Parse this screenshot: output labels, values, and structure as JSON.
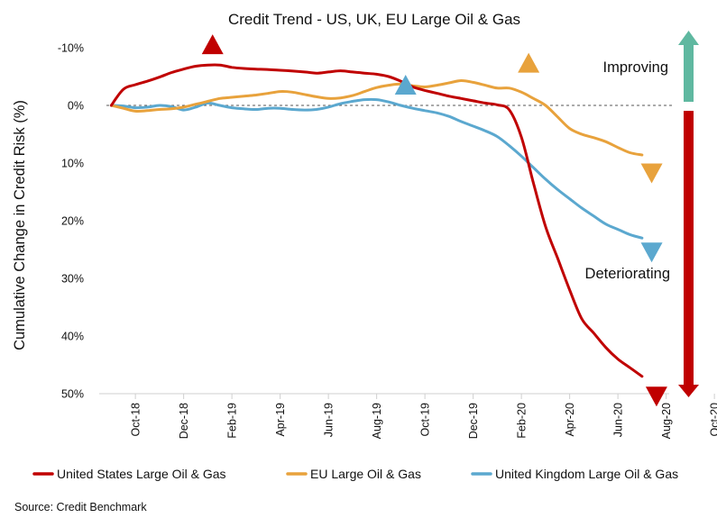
{
  "chart_data": {
    "type": "line",
    "title": "Credit Trend - US, UK, EU Large Oil & Gas",
    "ylabel": "Cumulative Change in Credit Risk (%)",
    "xlabel": "",
    "y_inverted": true,
    "ylim": [
      -10,
      50
    ],
    "y_ticks": [
      {
        "value": -10,
        "label": "-10%",
        "color": "#3a9a82"
      },
      {
        "value": 0,
        "label": "0%",
        "color": "#111111"
      },
      {
        "value": 10,
        "label": "10%",
        "color": "#cc1111"
      },
      {
        "value": 20,
        "label": "20%",
        "color": "#cc1111"
      },
      {
        "value": 30,
        "label": "30%",
        "color": "#cc1111"
      },
      {
        "value": 40,
        "label": "40%",
        "color": "#cc1111"
      },
      {
        "value": 50,
        "label": "50%",
        "color": "#cc1111"
      }
    ],
    "xlim": [
      -0.5,
      23.5
    ],
    "x_ticks": [
      {
        "value": 1,
        "label": "Oct-18"
      },
      {
        "value": 3,
        "label": "Dec-18"
      },
      {
        "value": 5,
        "label": "Feb-19"
      },
      {
        "value": 7,
        "label": "Apr-19"
      },
      {
        "value": 9,
        "label": "Jun-19"
      },
      {
        "value": 11,
        "label": "Aug-19"
      },
      {
        "value": 13,
        "label": "Oct-19"
      },
      {
        "value": 15,
        "label": "Dec-19"
      },
      {
        "value": 17,
        "label": "Feb-20"
      },
      {
        "value": 19,
        "label": "Apr-20"
      },
      {
        "value": 21,
        "label": "Jun-20"
      },
      {
        "value": 23,
        "label": "Aug-20"
      },
      {
        "value": 25,
        "label": "Oct-20"
      }
    ],
    "series": [
      {
        "name": "United States Large Oil & Gas",
        "color": "#c00000",
        "points": [
          [
            0,
            0
          ],
          [
            0.5,
            -2.8
          ],
          [
            1,
            -3.6
          ],
          [
            1.5,
            -4.2
          ],
          [
            2,
            -4.9
          ],
          [
            2.5,
            -5.7
          ],
          [
            3,
            -6.3
          ],
          [
            3.5,
            -6.8
          ],
          [
            4,
            -7.0
          ],
          [
            4.5,
            -7.0
          ],
          [
            5,
            -6.6
          ],
          [
            5.5,
            -6.4
          ],
          [
            6,
            -6.3
          ],
          [
            7,
            -6.1
          ],
          [
            8,
            -5.8
          ],
          [
            8.5,
            -5.6
          ],
          [
            9,
            -5.8
          ],
          [
            9.5,
            -6.0
          ],
          [
            10,
            -5.8
          ],
          [
            10.5,
            -5.6
          ],
          [
            11,
            -5.4
          ],
          [
            11.5,
            -5.0
          ],
          [
            12,
            -4.2
          ],
          [
            12.5,
            -3.2
          ],
          [
            13,
            -2.6
          ],
          [
            13.5,
            -2.1
          ],
          [
            14,
            -1.6
          ],
          [
            14.5,
            -1.2
          ],
          [
            15,
            -0.8
          ],
          [
            15.5,
            -0.4
          ],
          [
            16,
            -0.1
          ],
          [
            16.5,
            0.8
          ],
          [
            17,
            5.5
          ],
          [
            17.5,
            13.5
          ],
          [
            18,
            21.0
          ],
          [
            18.5,
            26.5
          ],
          [
            19,
            32.0
          ],
          [
            19.5,
            37.0
          ],
          [
            20,
            39.5
          ],
          [
            20.5,
            42.0
          ],
          [
            21,
            44.0
          ],
          [
            21.5,
            45.5
          ],
          [
            22,
            47.0
          ]
        ]
      },
      {
        "name": "EU Large Oil & Gas",
        "color": "#e8a23c",
        "points": [
          [
            0,
            0
          ],
          [
            0.5,
            0.5
          ],
          [
            1,
            1.0
          ],
          [
            1.5,
            0.9
          ],
          [
            2,
            0.7
          ],
          [
            2.5,
            0.6
          ],
          [
            3,
            0.3
          ],
          [
            3.5,
            -0.2
          ],
          [
            4,
            -0.7
          ],
          [
            4.5,
            -1.2
          ],
          [
            5,
            -1.4
          ],
          [
            5.5,
            -1.6
          ],
          [
            6,
            -1.8
          ],
          [
            6.5,
            -2.1
          ],
          [
            7,
            -2.4
          ],
          [
            7.5,
            -2.3
          ],
          [
            8,
            -1.9
          ],
          [
            8.5,
            -1.5
          ],
          [
            9,
            -1.2
          ],
          [
            9.5,
            -1.3
          ],
          [
            10,
            -1.7
          ],
          [
            10.5,
            -2.4
          ],
          [
            11,
            -3.1
          ],
          [
            11.5,
            -3.5
          ],
          [
            12,
            -3.7
          ],
          [
            12.5,
            -3.4
          ],
          [
            13,
            -3.2
          ],
          [
            13.5,
            -3.5
          ],
          [
            14,
            -3.9
          ],
          [
            14.5,
            -4.3
          ],
          [
            15,
            -4.0
          ],
          [
            15.5,
            -3.5
          ],
          [
            16,
            -3.0
          ],
          [
            16.5,
            -3.0
          ],
          [
            17,
            -2.3
          ],
          [
            17.5,
            -1.2
          ],
          [
            18,
            0.0
          ],
          [
            18.5,
            2.0
          ],
          [
            19,
            4.0
          ],
          [
            19.5,
            5.0
          ],
          [
            20,
            5.6
          ],
          [
            20.5,
            6.3
          ],
          [
            21,
            7.3
          ],
          [
            21.5,
            8.2
          ],
          [
            22,
            8.6
          ]
        ]
      },
      {
        "name": "United Kingdom Large Oil & Gas",
        "color": "#5ba8cf",
        "points": [
          [
            0,
            0
          ],
          [
            0.5,
            0.1
          ],
          [
            1,
            0.4
          ],
          [
            1.5,
            0.3
          ],
          [
            2,
            0.0
          ],
          [
            2.5,
            0.2
          ],
          [
            3,
            0.8
          ],
          [
            3.5,
            0.3
          ],
          [
            4,
            -0.4
          ],
          [
            4.5,
            0.0
          ],
          [
            5,
            0.4
          ],
          [
            5.5,
            0.6
          ],
          [
            6,
            0.7
          ],
          [
            6.5,
            0.5
          ],
          [
            7,
            0.5
          ],
          [
            7.5,
            0.7
          ],
          [
            8,
            0.8
          ],
          [
            8.5,
            0.7
          ],
          [
            9,
            0.3
          ],
          [
            9.5,
            -0.3
          ],
          [
            10,
            -0.7
          ],
          [
            10.5,
            -1.0
          ],
          [
            11,
            -1.0
          ],
          [
            11.5,
            -0.6
          ],
          [
            12,
            0.0
          ],
          [
            12.5,
            0.5
          ],
          [
            13,
            0.9
          ],
          [
            13.5,
            1.3
          ],
          [
            14,
            1.9
          ],
          [
            14.5,
            2.8
          ],
          [
            15,
            3.6
          ],
          [
            15.5,
            4.4
          ],
          [
            16,
            5.4
          ],
          [
            16.5,
            7.0
          ],
          [
            17,
            8.8
          ],
          [
            17.5,
            10.8
          ],
          [
            18,
            12.8
          ],
          [
            18.5,
            14.6
          ],
          [
            19,
            16.2
          ],
          [
            19.5,
            17.8
          ],
          [
            20,
            19.2
          ],
          [
            20.5,
            20.6
          ],
          [
            21,
            21.5
          ],
          [
            21.5,
            22.4
          ],
          [
            22,
            23.0
          ]
        ]
      }
    ],
    "markers": [
      {
        "name": "us-peak-up-marker",
        "shape": "triangle-up",
        "x": 4.2,
        "y": -10.6,
        "color": "#c00000"
      },
      {
        "name": "uk-up-marker",
        "shape": "triangle-up",
        "x": 12.2,
        "y": -3.6,
        "color": "#5ba8cf"
      },
      {
        "name": "eu-up-marker",
        "shape": "triangle-up",
        "x": 17.3,
        "y": -7.4,
        "color": "#e8a23c"
      },
      {
        "name": "eu-down-marker",
        "shape": "triangle-down",
        "x": 22.4,
        "y": 11.8,
        "color": "#e8a23c"
      },
      {
        "name": "uk-down-marker",
        "shape": "triangle-down",
        "x": 22.4,
        "y": 25.5,
        "color": "#5ba8cf"
      },
      {
        "name": "us-down-marker",
        "shape": "triangle-down",
        "x": 22.6,
        "y": 50.5,
        "color": "#c00000"
      }
    ],
    "annotations": {
      "improving": "Improving",
      "deteriorating": "Deteriorating",
      "improving_arrow_color": "#5fb8a0",
      "deteriorating_arrow_color": "#c00000"
    },
    "legend": [
      {
        "label": "United States Large Oil & Gas",
        "color": "#c00000"
      },
      {
        "label": "EU Large Oil & Gas",
        "color": "#e8a23c"
      },
      {
        "label": "United Kingdom Large Oil & Gas",
        "color": "#5ba8cf"
      }
    ],
    "source": "Source: Credit Benchmark"
  }
}
